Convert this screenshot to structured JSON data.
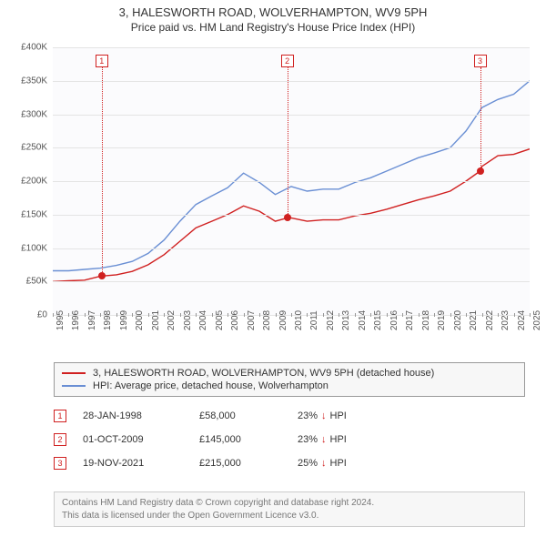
{
  "title": {
    "line1": "3, HALESWORTH ROAD, WOLVERHAMPTON, WV9 5PH",
    "line2": "Price paid vs. HM Land Registry's House Price Index (HPI)"
  },
  "chart": {
    "type": "line",
    "background_color": "#fbfbfd",
    "grid_color": "#e4e4e4",
    "ylim": [
      0,
      400000
    ],
    "ytick_step": 50000,
    "yticks": [
      "£0",
      "£50K",
      "£100K",
      "£150K",
      "£200K",
      "£250K",
      "£300K",
      "£350K",
      "£400K"
    ],
    "xlim": [
      1995,
      2025
    ],
    "xticks": [
      1995,
      1996,
      1997,
      1998,
      1999,
      2000,
      2001,
      2002,
      2003,
      2004,
      2005,
      2006,
      2007,
      2008,
      2009,
      2010,
      2011,
      2012,
      2013,
      2014,
      2015,
      2016,
      2017,
      2018,
      2019,
      2020,
      2021,
      2022,
      2023,
      2024,
      2025
    ],
    "series": [
      {
        "name": "property_price",
        "color": "#d02020",
        "line_width": 1.4,
        "data": [
          [
            1995,
            50000
          ],
          [
            1996,
            51000
          ],
          [
            1997,
            52000
          ],
          [
            1998,
            58000
          ],
          [
            1999,
            60000
          ],
          [
            2000,
            65000
          ],
          [
            2001,
            75000
          ],
          [
            2002,
            90000
          ],
          [
            2003,
            110000
          ],
          [
            2004,
            130000
          ],
          [
            2005,
            140000
          ],
          [
            2006,
            150000
          ],
          [
            2007,
            163000
          ],
          [
            2008,
            155000
          ],
          [
            2009,
            140000
          ],
          [
            2009.75,
            145000
          ],
          [
            2010,
            145000
          ],
          [
            2011,
            140000
          ],
          [
            2012,
            142000
          ],
          [
            2013,
            142000
          ],
          [
            2014,
            148000
          ],
          [
            2015,
            152000
          ],
          [
            2016,
            158000
          ],
          [
            2017,
            165000
          ],
          [
            2018,
            172000
          ],
          [
            2019,
            178000
          ],
          [
            2020,
            185000
          ],
          [
            2021,
            200000
          ],
          [
            2021.88,
            215000
          ],
          [
            2022,
            222000
          ],
          [
            2023,
            238000
          ],
          [
            2024,
            240000
          ],
          [
            2025,
            248000
          ]
        ]
      },
      {
        "name": "hpi",
        "color": "#6a8fd4",
        "line_width": 1.4,
        "data": [
          [
            1995,
            66000
          ],
          [
            1996,
            66000
          ],
          [
            1997,
            68000
          ],
          [
            1998,
            70000
          ],
          [
            1999,
            74000
          ],
          [
            2000,
            80000
          ],
          [
            2001,
            92000
          ],
          [
            2002,
            112000
          ],
          [
            2003,
            140000
          ],
          [
            2004,
            165000
          ],
          [
            2005,
            178000
          ],
          [
            2006,
            190000
          ],
          [
            2007,
            212000
          ],
          [
            2008,
            198000
          ],
          [
            2009,
            180000
          ],
          [
            2010,
            192000
          ],
          [
            2011,
            185000
          ],
          [
            2012,
            188000
          ],
          [
            2013,
            188000
          ],
          [
            2014,
            198000
          ],
          [
            2015,
            205000
          ],
          [
            2016,
            215000
          ],
          [
            2017,
            225000
          ],
          [
            2018,
            235000
          ],
          [
            2019,
            242000
          ],
          [
            2020,
            250000
          ],
          [
            2021,
            275000
          ],
          [
            2022,
            310000
          ],
          [
            2023,
            322000
          ],
          [
            2024,
            330000
          ],
          [
            2025,
            350000
          ]
        ]
      }
    ],
    "markers": [
      {
        "n": "1",
        "date_x": 1998.08,
        "price": 58000
      },
      {
        "n": "2",
        "date_x": 2009.75,
        "price": 145000
      },
      {
        "n": "3",
        "date_x": 2021.88,
        "price": 215000
      }
    ]
  },
  "legend": {
    "items": [
      {
        "color": "#d02020",
        "label": "3, HALESWORTH ROAD, WOLVERHAMPTON, WV9 5PH (detached house)"
      },
      {
        "color": "#6a8fd4",
        "label": "HPI: Average price, detached house, Wolverhampton"
      }
    ]
  },
  "sales": [
    {
      "n": "1",
      "date": "28-JAN-1998",
      "price": "£58,000",
      "diff": "23%",
      "suffix": "HPI"
    },
    {
      "n": "2",
      "date": "01-OCT-2009",
      "price": "£145,000",
      "diff": "23%",
      "suffix": "HPI"
    },
    {
      "n": "3",
      "date": "19-NOV-2021",
      "price": "£215,000",
      "diff": "25%",
      "suffix": "HPI"
    }
  ],
  "footer": {
    "line1": "Contains HM Land Registry data © Crown copyright and database right 2024.",
    "line2": "This data is licensed under the Open Government Licence v3.0."
  },
  "colors": {
    "marker_border": "#d02020",
    "text": "#333333"
  }
}
